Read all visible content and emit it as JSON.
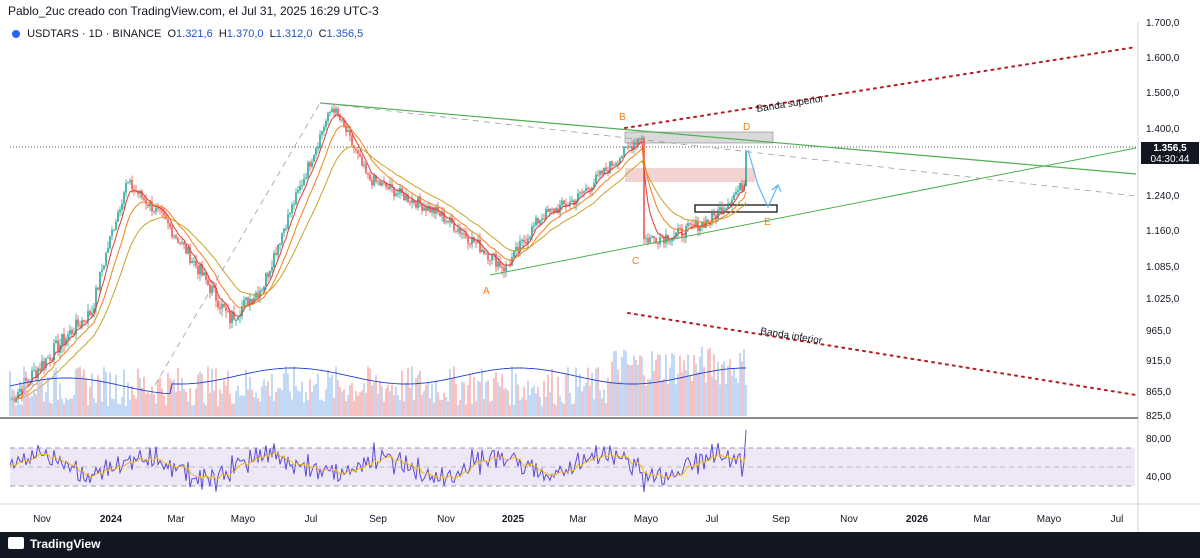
{
  "header": {
    "title": "Pablo_2uc creado con TradingView.com, el Jul 31, 2025 16:29 UTC-3"
  },
  "symbol": {
    "name": "USDTARS · 1D · BINANCE",
    "open_label": "O",
    "open": "1.321,6",
    "high_label": "H",
    "high": "1.370,0",
    "low_label": "L",
    "low": "1.312,0",
    "close_label": "C",
    "close": "1.356,5"
  },
  "price_tag": {
    "price": "1.356,5",
    "countdown": "04:30:44"
  },
  "footer": {
    "brand": "TradingView"
  },
  "colors": {
    "up": "#26a69a",
    "down": "#ef5350",
    "ema_fast": "#e53935",
    "ema_mid": "#f57f17",
    "ema_slow": "#c9a227",
    "trend": "#4caf50",
    "band": "#b71c1c",
    "rsi": "#5b4bd6",
    "rsi_ma": "#f5b800",
    "volume_ma": "#1e3fd0",
    "rsi_band": "#ede7f6"
  },
  "chart_data": {
    "type": "line",
    "title": "",
    "xlabel": "",
    "ylabel": "",
    "y_ticks": [
      "1.700,0",
      "1.600,0",
      "1.500,0",
      "1.400,0",
      "1.240,0",
      "1.160,0",
      "1.085,0",
      "1.025,0",
      "965,0",
      "915,0",
      "865,0",
      "825,0"
    ],
    "x_ticks": [
      "Nov",
      "2024",
      "Mar",
      "Mayo",
      "Jul",
      "Sep",
      "Nov",
      "2025",
      "Mar",
      "Mayo",
      "Jul",
      "Sep",
      "Nov",
      "2026",
      "Mar",
      "Mayo",
      "Jul"
    ],
    "series": [
      {
        "name": "",
        "x": [
          "2023-10",
          "2023-12",
          "2024-01",
          "2024-02",
          "2024-04",
          "2024-05",
          "2024-06",
          "2024-07",
          "2024-08",
          "2024-10",
          "2024-12",
          "2025-01",
          "2025-02",
          "2025-04",
          "2025-04",
          "2025-05",
          "2025-06",
          "2025-07",
          "2025-07"
        ],
        "values": [
          850,
          1000,
          1270,
          1190,
          985,
          1050,
          1250,
          1460,
          1280,
          1200,
          1080,
          1190,
          1230,
          1385,
          1140,
          1150,
          1185,
          1270,
          1356
        ]
      }
    ],
    "pattern_points": [
      {
        "label": "A",
        "x": "2024-12",
        "y": 1078
      },
      {
        "label": "B",
        "x": "2025-04",
        "y": 1385
      },
      {
        "label": "C",
        "x": "2025-04",
        "y": 1130
      },
      {
        "label": "D",
        "x": "2025-07",
        "y": 1360
      },
      {
        "label": "E",
        "x": "2025-08",
        "y": 1200
      }
    ],
    "annotations": [
      "Banda superior",
      "Banda inferior"
    ],
    "rsi": {
      "levels": [
        "80,00",
        "40,00"
      ]
    },
    "legend": "none",
    "grid": false
  }
}
